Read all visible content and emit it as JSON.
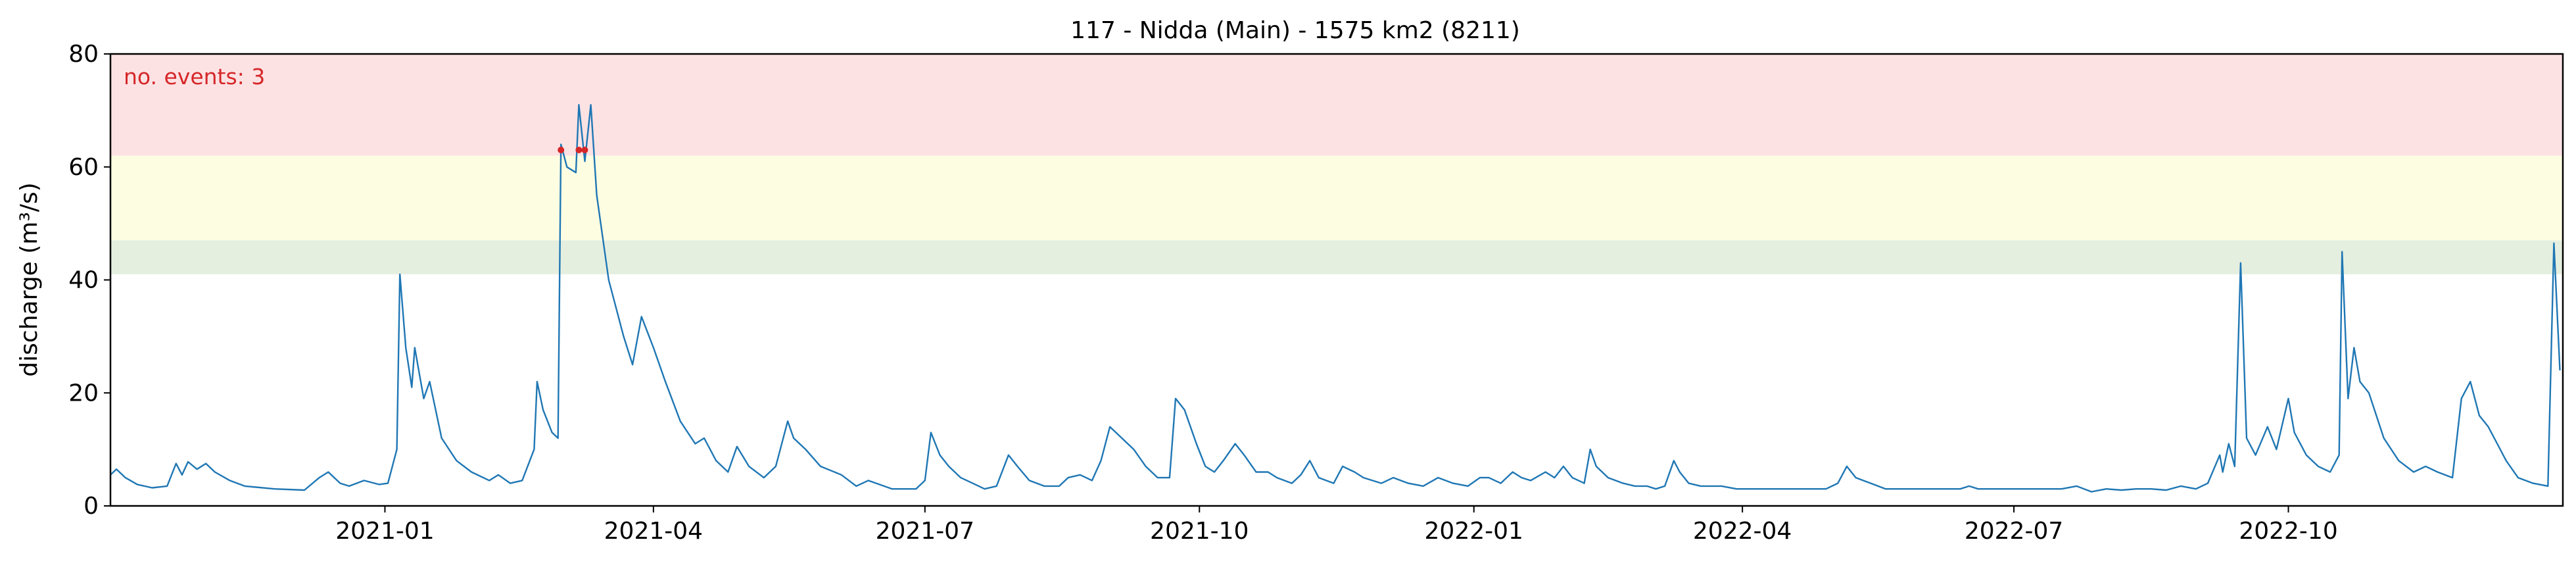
{
  "chart_data": {
    "type": "line",
    "title": "117 - Nidda (Main) - 1575 km2 (8211)",
    "xlabel": "",
    "ylabel": "discharge (m³/s)",
    "xlim": [
      "2020-10-01",
      "2022-12-31"
    ],
    "ylim": [
      0,
      80
    ],
    "yticks": [
      0,
      20,
      40,
      60,
      80
    ],
    "ytick_labels": [
      "0",
      "20",
      "40",
      "60",
      "80"
    ],
    "xticks": [
      "2021-01-01",
      "2021-04-01",
      "2021-07-01",
      "2021-10-01",
      "2022-01-01",
      "2022-04-01",
      "2022-07-01",
      "2022-10-01"
    ],
    "xtick_labels": [
      "2021-01",
      "2021-04",
      "2021-07",
      "2021-10",
      "2022-01",
      "2022-04",
      "2022-07",
      "2022-10"
    ],
    "grid": false,
    "threshold_bands": [
      {
        "from": 41,
        "to": 47,
        "color": "#e5efe0"
      },
      {
        "from": 47,
        "to": 62,
        "color": "#fdfde2"
      },
      {
        "from": 62,
        "to": 80,
        "color": "#fde2e4"
      }
    ],
    "series": [
      {
        "color": "#1f77b4",
        "points": [
          [
            "2020-10-01",
            5.5
          ],
          [
            "2020-10-03",
            6.5
          ],
          [
            "2020-10-06",
            5
          ],
          [
            "2020-10-10",
            3.8
          ],
          [
            "2020-10-15",
            3.2
          ],
          [
            "2020-10-20",
            3.5
          ],
          [
            "2020-10-23",
            7.5
          ],
          [
            "2020-10-25",
            5.5
          ],
          [
            "2020-10-27",
            7.8
          ],
          [
            "2020-10-30",
            6.5
          ],
          [
            "2020-11-02",
            7.5
          ],
          [
            "2020-11-05",
            6
          ],
          [
            "2020-11-10",
            4.5
          ],
          [
            "2020-11-15",
            3.5
          ],
          [
            "2020-11-25",
            3
          ],
          [
            "2020-12-05",
            2.8
          ],
          [
            "2020-12-10",
            5
          ],
          [
            "2020-12-13",
            6
          ],
          [
            "2020-12-17",
            4
          ],
          [
            "2020-12-20",
            3.5
          ],
          [
            "2020-12-25",
            4.5
          ],
          [
            "2020-12-30",
            3.8
          ],
          [
            "2021-01-02",
            4
          ],
          [
            "2021-01-05",
            10
          ],
          [
            "2021-01-06",
            41
          ],
          [
            "2021-01-08",
            28
          ],
          [
            "2021-01-10",
            21
          ],
          [
            "2021-01-11",
            28
          ],
          [
            "2021-01-14",
            19
          ],
          [
            "2021-01-16",
            22
          ],
          [
            "2021-01-20",
            12
          ],
          [
            "2021-01-25",
            8
          ],
          [
            "2021-01-30",
            6
          ],
          [
            "2021-02-05",
            4.5
          ],
          [
            "2021-02-08",
            5.5
          ],
          [
            "2021-02-12",
            4
          ],
          [
            "2021-02-16",
            4.5
          ],
          [
            "2021-02-20",
            10
          ],
          [
            "2021-02-21",
            22
          ],
          [
            "2021-02-23",
            17
          ],
          [
            "2021-02-26",
            13
          ],
          [
            "2021-02-28",
            12
          ],
          [
            "2021-03-01",
            64
          ],
          [
            "2021-03-03",
            60
          ],
          [
            "2021-03-06",
            59
          ],
          [
            "2021-03-07",
            71
          ],
          [
            "2021-03-09",
            61
          ],
          [
            "2021-03-11",
            71
          ],
          [
            "2021-03-13",
            55
          ],
          [
            "2021-03-17",
            40
          ],
          [
            "2021-03-22",
            30
          ],
          [
            "2021-03-25",
            25
          ],
          [
            "2021-03-28",
            33.5
          ],
          [
            "2021-04-01",
            28
          ],
          [
            "2021-04-05",
            22
          ],
          [
            "2021-04-10",
            15
          ],
          [
            "2021-04-15",
            11
          ],
          [
            "2021-04-18",
            12
          ],
          [
            "2021-04-22",
            8
          ],
          [
            "2021-04-26",
            6
          ],
          [
            "2021-04-29",
            10.5
          ],
          [
            "2021-05-03",
            7
          ],
          [
            "2021-05-08",
            5
          ],
          [
            "2021-05-12",
            7
          ],
          [
            "2021-05-14",
            11
          ],
          [
            "2021-05-16",
            15
          ],
          [
            "2021-05-18",
            12
          ],
          [
            "2021-05-22",
            10
          ],
          [
            "2021-05-27",
            7
          ],
          [
            "2021-06-03",
            5.5
          ],
          [
            "2021-06-08",
            3.5
          ],
          [
            "2021-06-12",
            4.5
          ],
          [
            "2021-06-20",
            3
          ],
          [
            "2021-06-28",
            3
          ],
          [
            "2021-07-01",
            4.5
          ],
          [
            "2021-07-03",
            13
          ],
          [
            "2021-07-06",
            9
          ],
          [
            "2021-07-09",
            7
          ],
          [
            "2021-07-13",
            5
          ],
          [
            "2021-07-17",
            4
          ],
          [
            "2021-07-21",
            3
          ],
          [
            "2021-07-25",
            3.5
          ],
          [
            "2021-07-29",
            9
          ],
          [
            "2021-08-01",
            7
          ],
          [
            "2021-08-05",
            4.5
          ],
          [
            "2021-08-10",
            3.5
          ],
          [
            "2021-08-15",
            3.5
          ],
          [
            "2021-08-18",
            5
          ],
          [
            "2021-08-22",
            5.5
          ],
          [
            "2021-08-26",
            4.5
          ],
          [
            "2021-08-29",
            8
          ],
          [
            "2021-09-01",
            14
          ],
          [
            "2021-09-05",
            12
          ],
          [
            "2021-09-09",
            10
          ],
          [
            "2021-09-13",
            7
          ],
          [
            "2021-09-17",
            5
          ],
          [
            "2021-09-21",
            5
          ],
          [
            "2021-09-23",
            19
          ],
          [
            "2021-09-26",
            17
          ],
          [
            "2021-09-30",
            11
          ],
          [
            "2021-10-03",
            7
          ],
          [
            "2021-10-06",
            6
          ],
          [
            "2021-10-09",
            8
          ],
          [
            "2021-10-13",
            11
          ],
          [
            "2021-10-16",
            9
          ],
          [
            "2021-10-20",
            6
          ],
          [
            "2021-10-24",
            6
          ],
          [
            "2021-10-27",
            5
          ],
          [
            "2021-11-01",
            4
          ],
          [
            "2021-11-04",
            5.5
          ],
          [
            "2021-11-07",
            8
          ],
          [
            "2021-11-10",
            5
          ],
          [
            "2021-11-15",
            4
          ],
          [
            "2021-11-18",
            7
          ],
          [
            "2021-11-22",
            6
          ],
          [
            "2021-11-25",
            5
          ],
          [
            "2021-12-01",
            4
          ],
          [
            "2021-12-05",
            5
          ],
          [
            "2021-12-10",
            4
          ],
          [
            "2021-12-15",
            3.5
          ],
          [
            "2021-12-20",
            5
          ],
          [
            "2021-12-25",
            4
          ],
          [
            "2021-12-30",
            3.5
          ],
          [
            "2022-01-03",
            5
          ],
          [
            "2022-01-06",
            5
          ],
          [
            "2022-01-10",
            4
          ],
          [
            "2022-01-14",
            6
          ],
          [
            "2022-01-17",
            5
          ],
          [
            "2022-01-20",
            4.5
          ],
          [
            "2022-01-25",
            6
          ],
          [
            "2022-01-28",
            5
          ],
          [
            "2022-01-31",
            7
          ],
          [
            "2022-02-03",
            5
          ],
          [
            "2022-02-07",
            4
          ],
          [
            "2022-02-09",
            10
          ],
          [
            "2022-02-11",
            7
          ],
          [
            "2022-02-15",
            5
          ],
          [
            "2022-02-20",
            4
          ],
          [
            "2022-02-24",
            3.5
          ],
          [
            "2022-02-28",
            3.5
          ],
          [
            "2022-03-03",
            3
          ],
          [
            "2022-03-06",
            3.5
          ],
          [
            "2022-03-09",
            8
          ],
          [
            "2022-03-11",
            6
          ],
          [
            "2022-03-14",
            4
          ],
          [
            "2022-03-18",
            3.5
          ],
          [
            "2022-03-22",
            3.5
          ],
          [
            "2022-03-25",
            3.5
          ],
          [
            "2022-03-30",
            3
          ],
          [
            "2022-04-04",
            3
          ],
          [
            "2022-04-09",
            3
          ],
          [
            "2022-04-14",
            3
          ],
          [
            "2022-04-19",
            3
          ],
          [
            "2022-04-24",
            3
          ],
          [
            "2022-04-29",
            3
          ],
          [
            "2022-05-03",
            4
          ],
          [
            "2022-05-06",
            7
          ],
          [
            "2022-05-09",
            5
          ],
          [
            "2022-05-14",
            4
          ],
          [
            "2022-05-19",
            3
          ],
          [
            "2022-05-24",
            3
          ],
          [
            "2022-05-29",
            3
          ],
          [
            "2022-06-03",
            3
          ],
          [
            "2022-06-08",
            3
          ],
          [
            "2022-06-13",
            3
          ],
          [
            "2022-06-16",
            3.5
          ],
          [
            "2022-06-19",
            3
          ],
          [
            "2022-06-22",
            3
          ],
          [
            "2022-06-27",
            3
          ],
          [
            "2022-07-02",
            3
          ],
          [
            "2022-07-07",
            3
          ],
          [
            "2022-07-12",
            3
          ],
          [
            "2022-07-17",
            3
          ],
          [
            "2022-07-22",
            3.5
          ],
          [
            "2022-07-27",
            2.5
          ],
          [
            "2022-08-01",
            3
          ],
          [
            "2022-08-06",
            2.8
          ],
          [
            "2022-08-11",
            3
          ],
          [
            "2022-08-16",
            3
          ],
          [
            "2022-08-21",
            2.8
          ],
          [
            "2022-08-26",
            3.5
          ],
          [
            "2022-08-31",
            3
          ],
          [
            "2022-09-04",
            4
          ],
          [
            "2022-09-08",
            9
          ],
          [
            "2022-09-09",
            6
          ],
          [
            "2022-09-11",
            11
          ],
          [
            "2022-09-13",
            7
          ],
          [
            "2022-09-15",
            43
          ],
          [
            "2022-09-17",
            12
          ],
          [
            "2022-09-20",
            9
          ],
          [
            "2022-09-24",
            14
          ],
          [
            "2022-09-27",
            10
          ],
          [
            "2022-10-01",
            19
          ],
          [
            "2022-10-03",
            13
          ],
          [
            "2022-10-07",
            9
          ],
          [
            "2022-10-11",
            7
          ],
          [
            "2022-10-15",
            6
          ],
          [
            "2022-10-18",
            9
          ],
          [
            "2022-10-19",
            45
          ],
          [
            "2022-10-21",
            19
          ],
          [
            "2022-10-23",
            28
          ],
          [
            "2022-10-25",
            22
          ],
          [
            "2022-10-28",
            20
          ],
          [
            "2022-11-02",
            12
          ],
          [
            "2022-11-07",
            8
          ],
          [
            "2022-11-12",
            6
          ],
          [
            "2022-11-16",
            7
          ],
          [
            "2022-11-20",
            6
          ],
          [
            "2022-11-25",
            5
          ],
          [
            "2022-11-28",
            19
          ],
          [
            "2022-12-01",
            22
          ],
          [
            "2022-12-04",
            16
          ],
          [
            "2022-12-07",
            14
          ],
          [
            "2022-12-10",
            11
          ],
          [
            "2022-12-13",
            8
          ],
          [
            "2022-12-17",
            5
          ],
          [
            "2022-12-22",
            4
          ],
          [
            "2022-12-27",
            3.5
          ],
          [
            "2022-12-29",
            46.5
          ],
          [
            "2022-12-31",
            24
          ]
        ]
      }
    ],
    "events": [
      {
        "x": "2021-03-01",
        "y": 63
      },
      {
        "x": "2021-03-07",
        "y": 63
      },
      {
        "x": "2021-03-09",
        "y": 63
      }
    ],
    "annotation": {
      "text": "no. events: 3",
      "position": "top-left",
      "color": "#d62728"
    }
  }
}
